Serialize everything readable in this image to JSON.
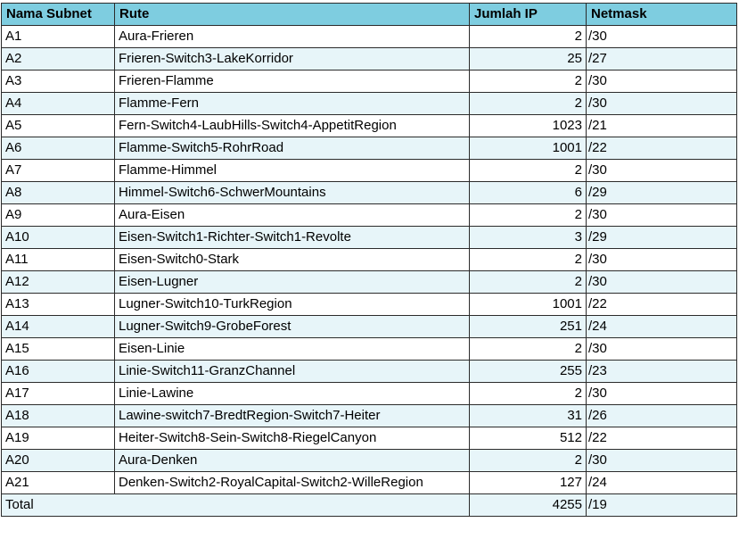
{
  "headers": {
    "subnet": "Nama Subnet",
    "route": "Rute",
    "ip_count": "Jumlah IP",
    "netmask": "Netmask"
  },
  "rows": [
    {
      "subnet": "A1",
      "route": "Aura-Frieren",
      "ip": "2",
      "mask": "/30"
    },
    {
      "subnet": "A2",
      "route": "Frieren-Switch3-LakeKorridor",
      "ip": "25",
      "mask": "/27"
    },
    {
      "subnet": "A3",
      "route": "Frieren-Flamme",
      "ip": "2",
      "mask": "/30"
    },
    {
      "subnet": "A4",
      "route": "Flamme-Fern",
      "ip": "2",
      "mask": "/30"
    },
    {
      "subnet": "A5",
      "route": "Fern-Switch4-LaubHills-Switch4-AppetitRegion",
      "ip": "1023",
      "mask": "/21"
    },
    {
      "subnet": "A6",
      "route": "Flamme-Switch5-RohrRoad",
      "ip": "1001",
      "mask": "/22"
    },
    {
      "subnet": "A7",
      "route": "Flamme-Himmel",
      "ip": "2",
      "mask": "/30"
    },
    {
      "subnet": "A8",
      "route": "Himmel-Switch6-SchwerMountains",
      "ip": "6",
      "mask": "/29"
    },
    {
      "subnet": "A9",
      "route": "Aura-Eisen",
      "ip": "2",
      "mask": "/30"
    },
    {
      "subnet": "A10",
      "route": "Eisen-Switch1-Richter-Switch1-Revolte",
      "ip": "3",
      "mask": "/29"
    },
    {
      "subnet": "A11",
      "route": "Eisen-Switch0-Stark",
      "ip": "2",
      "mask": "/30"
    },
    {
      "subnet": "A12",
      "route": "Eisen-Lugner",
      "ip": "2",
      "mask": "/30"
    },
    {
      "subnet": "A13",
      "route": "Lugner-Switch10-TurkRegion",
      "ip": "1001",
      "mask": "/22"
    },
    {
      "subnet": "A14",
      "route": "Lugner-Switch9-GrobeForest",
      "ip": "251",
      "mask": "/24"
    },
    {
      "subnet": "A15",
      "route": "Eisen-Linie",
      "ip": "2",
      "mask": "/30"
    },
    {
      "subnet": "A16",
      "route": "Linie-Switch11-GranzChannel",
      "ip": "255",
      "mask": "/23"
    },
    {
      "subnet": "A17",
      "route": "Linie-Lawine",
      "ip": "2",
      "mask": "/30"
    },
    {
      "subnet": "A18",
      "route": "Lawine-switch7-BredtRegion-Switch7-Heiter",
      "ip": "31",
      "mask": "/26"
    },
    {
      "subnet": "A19",
      "route": "Heiter-Switch8-Sein-Switch8-RiegelCanyon",
      "ip": "512",
      "mask": "/22"
    },
    {
      "subnet": "A20",
      "route": "Aura-Denken",
      "ip": "2",
      "mask": "/30"
    },
    {
      "subnet": "A21",
      "route": "Denken-Switch2-RoyalCapital-Switch2-WilleRegion",
      "ip": "127",
      "mask": "/24"
    }
  ],
  "total": {
    "label": "Total",
    "ip": "4255",
    "mask": "/19"
  },
  "colors": {
    "header_bg": "#7ecde0",
    "row_alt_bg": "#e7f5f9",
    "border": "#2b2b2b"
  }
}
